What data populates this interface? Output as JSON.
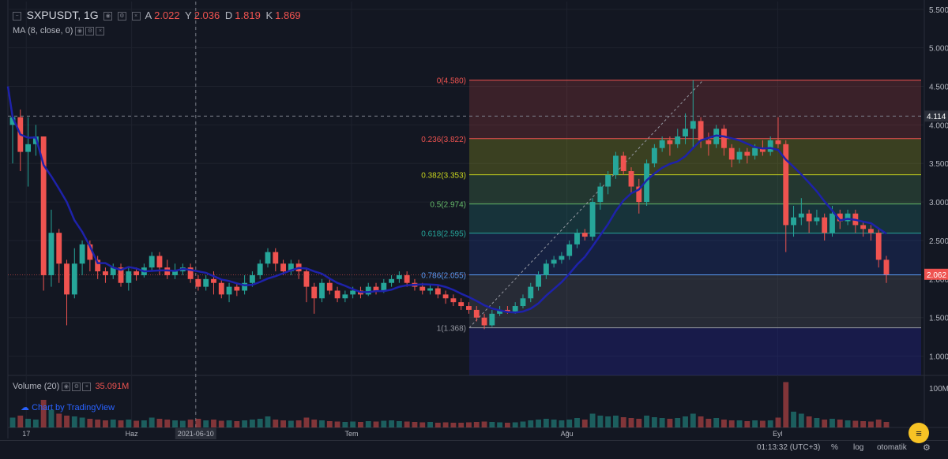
{
  "header": {
    "symbol": "SXPUSDT, 1G",
    "open_label": "A",
    "open_value": "2.022",
    "high_label": "Y",
    "high_value": "2.036",
    "low_label": "D",
    "low_value": "1.819",
    "close_label": "K",
    "close_value": "1.869"
  },
  "indicator": {
    "label": "MA (8, close, 0)"
  },
  "volume": {
    "label": "Volume (20)",
    "value": "35.091M"
  },
  "brand": {
    "text": "Chart by TradingView"
  },
  "footer": {
    "time": "01:13:32 (UTC+3)",
    "percent": "%",
    "log": "log",
    "auto": "otomatik"
  },
  "colors": {
    "up": "#26a69a",
    "down": "#ef5350",
    "ma": "#1e22aa",
    "background": "#131722"
  },
  "chart_data": {
    "type": "candlestick",
    "price_axis": {
      "range": [
        0.75,
        5.6
      ],
      "ticks": [
        "5.500",
        "5.000",
        "4.500",
        "4.000",
        "3.500",
        "3.000",
        "2.500",
        "2.000",
        "1.500",
        "1.000"
      ]
    },
    "time_axis": {
      "labels": [
        "17",
        "Haz",
        "2021-06-10",
        "Tem",
        "Ağu",
        "Eyl"
      ]
    },
    "volume_axis": {
      "ticks": [
        "100M"
      ]
    },
    "price_labels": [
      {
        "value": "4.114",
        "type": "crosshair"
      },
      {
        "value": "2.062",
        "type": "last"
      }
    ],
    "fibonacci": [
      {
        "label": "0(4.580)",
        "level": 4.58,
        "color": "#ef5350"
      },
      {
        "label": "0.236(3.822)",
        "level": 3.822,
        "color": "#ef5350"
      },
      {
        "label": "0.382(3.353)",
        "level": 3.353,
        "color": "#c8d51f"
      },
      {
        "label": "0.5(2.974)",
        "level": 2.974,
        "color": "#66bb6a"
      },
      {
        "label": "0.618(2.595)",
        "level": 2.595,
        "color": "#26a69a"
      },
      {
        "label": "0.786(2.055)",
        "level": 2.055,
        "color": "#5b9cf6"
      },
      {
        "label": "1(1.368)",
        "level": 1.368,
        "color": "#9598a1"
      }
    ],
    "candles": [
      [
        4.0,
        4.1,
        4.15,
        3.5
      ],
      [
        4.1,
        3.65,
        4.2,
        3.4
      ],
      [
        3.65,
        3.75,
        4.1,
        3.2
      ],
      [
        3.75,
        3.85,
        4.0,
        3.6
      ],
      [
        3.85,
        2.05,
        3.85,
        1.85
      ],
      [
        2.05,
        2.6,
        2.9,
        1.9
      ],
      [
        2.6,
        2.2,
        2.65,
        1.95
      ],
      [
        2.2,
        1.8,
        2.25,
        1.4
      ],
      [
        1.8,
        2.2,
        2.4,
        1.75
      ],
      [
        2.2,
        2.45,
        2.5,
        2.05
      ],
      [
        2.45,
        2.25,
        2.5,
        2.1
      ],
      [
        2.25,
        2.1,
        2.3,
        2.0
      ],
      [
        2.1,
        2.05,
        2.15,
        1.95
      ],
      [
        2.05,
        2.15,
        2.2,
        2.0
      ],
      [
        2.15,
        1.95,
        2.2,
        1.9
      ],
      [
        1.95,
        2.1,
        2.15,
        1.85
      ],
      [
        2.1,
        2.05,
        2.15,
        1.98
      ],
      [
        2.05,
        2.15,
        2.2,
        2.02
      ],
      [
        2.15,
        2.3,
        2.35,
        2.1
      ],
      [
        2.3,
        2.15,
        2.35,
        2.05
      ],
      [
        2.15,
        2.05,
        2.25,
        2.0
      ],
      [
        2.05,
        2.1,
        2.2,
        2.0
      ],
      [
        2.1,
        2.15,
        2.2,
        2.05
      ],
      [
        2.15,
        2.0,
        2.2,
        1.95
      ],
      [
        2.0,
        1.9,
        2.05,
        1.85
      ],
      [
        1.9,
        2.0,
        2.05,
        1.85
      ],
      [
        2.0,
        1.95,
        2.1,
        1.8
      ],
      [
        1.95,
        1.8,
        2.0,
        1.75
      ],
      [
        1.8,
        1.9,
        1.95,
        1.7
      ],
      [
        1.9,
        1.85,
        1.95,
        1.78
      ],
      [
        1.85,
        1.95,
        2.05,
        1.8
      ],
      [
        1.95,
        2.05,
        2.1,
        1.9
      ],
      [
        2.05,
        2.2,
        2.25,
        2.0
      ],
      [
        2.2,
        2.35,
        2.4,
        2.15
      ],
      [
        2.35,
        2.2,
        2.4,
        2.1
      ],
      [
        2.2,
        2.1,
        2.25,
        2.05
      ],
      [
        2.1,
        2.2,
        2.25,
        2.05
      ],
      [
        2.2,
        2.1,
        2.25,
        2.0
      ],
      [
        2.1,
        1.9,
        2.15,
        1.7
      ],
      [
        1.9,
        1.75,
        1.95,
        1.55
      ],
      [
        1.75,
        1.95,
        2.0,
        1.7
      ],
      [
        1.95,
        1.85,
        2.0,
        1.8
      ],
      [
        1.85,
        1.75,
        1.9,
        1.7
      ],
      [
        1.75,
        1.8,
        1.85,
        1.7
      ],
      [
        1.8,
        1.85,
        1.9,
        1.75
      ],
      [
        1.85,
        1.8,
        1.9,
        1.75
      ],
      [
        1.8,
        1.9,
        1.95,
        1.78
      ],
      [
        1.9,
        1.85,
        1.95,
        1.8
      ],
      [
        1.85,
        1.95,
        2.0,
        1.82
      ],
      [
        1.95,
        2.0,
        2.05,
        1.9
      ],
      [
        2.0,
        2.05,
        2.1,
        1.95
      ],
      [
        2.05,
        1.95,
        2.1,
        1.9
      ],
      [
        1.95,
        1.9,
        2.0,
        1.85
      ],
      [
        1.9,
        1.85,
        1.95,
        1.8
      ],
      [
        1.85,
        1.88,
        1.92,
        1.8
      ],
      [
        1.88,
        1.8,
        1.92,
        1.75
      ],
      [
        1.8,
        1.75,
        1.85,
        1.68
      ],
      [
        1.75,
        1.7,
        1.8,
        1.65
      ],
      [
        1.7,
        1.65,
        1.75,
        1.6
      ],
      [
        1.65,
        1.6,
        1.7,
        1.55
      ],
      [
        1.6,
        1.5,
        1.65,
        1.45
      ],
      [
        1.5,
        1.4,
        1.55,
        1.35
      ],
      [
        1.4,
        1.55,
        1.6,
        1.38
      ],
      [
        1.55,
        1.6,
        1.65,
        1.52
      ],
      [
        1.6,
        1.58,
        1.65,
        1.55
      ],
      [
        1.58,
        1.65,
        1.7,
        1.55
      ],
      [
        1.65,
        1.75,
        1.8,
        1.62
      ],
      [
        1.75,
        1.9,
        1.95,
        1.7
      ],
      [
        1.9,
        2.05,
        2.1,
        1.85
      ],
      [
        2.05,
        2.2,
        2.25,
        2.0
      ],
      [
        2.2,
        2.25,
        2.3,
        2.15
      ],
      [
        2.25,
        2.3,
        2.35,
        2.2
      ],
      [
        2.3,
        2.45,
        2.5,
        2.25
      ],
      [
        2.45,
        2.6,
        2.65,
        2.4
      ],
      [
        2.6,
        2.55,
        2.65,
        2.5
      ],
      [
        2.55,
        3.0,
        3.05,
        2.5
      ],
      [
        3.0,
        3.2,
        3.25,
        2.9
      ],
      [
        3.2,
        3.35,
        3.4,
        3.1
      ],
      [
        3.35,
        3.6,
        3.65,
        3.3
      ],
      [
        3.6,
        3.4,
        3.65,
        3.35
      ],
      [
        3.4,
        3.2,
        3.45,
        3.1
      ],
      [
        3.2,
        3.0,
        3.3,
        2.85
      ],
      [
        3.0,
        3.5,
        3.55,
        2.95
      ],
      [
        3.5,
        3.7,
        3.75,
        3.45
      ],
      [
        3.7,
        3.8,
        3.85,
        3.65
      ],
      [
        3.8,
        3.75,
        3.85,
        3.6
      ],
      [
        3.75,
        3.85,
        3.95,
        3.7
      ],
      [
        3.85,
        3.95,
        4.15,
        3.75
      ],
      [
        3.95,
        4.05,
        4.58,
        3.7
      ],
      [
        4.05,
        3.8,
        4.1,
        3.7
      ],
      [
        3.8,
        3.75,
        3.9,
        3.6
      ],
      [
        3.75,
        3.95,
        4.0,
        3.7
      ],
      [
        3.95,
        3.7,
        4.0,
        3.6
      ],
      [
        3.7,
        3.55,
        3.75,
        3.45
      ],
      [
        3.55,
        3.65,
        3.7,
        3.5
      ],
      [
        3.65,
        3.6,
        3.7,
        3.5
      ],
      [
        3.6,
        3.7,
        3.75,
        3.55
      ],
      [
        3.7,
        3.65,
        3.8,
        3.6
      ],
      [
        3.65,
        3.8,
        3.85,
        3.6
      ],
      [
        3.8,
        3.75,
        4.1,
        3.7
      ],
      [
        3.75,
        2.7,
        3.8,
        2.35
      ],
      [
        2.7,
        2.8,
        2.95,
        2.55
      ],
      [
        2.8,
        2.85,
        3.05,
        2.7
      ],
      [
        2.85,
        2.75,
        2.9,
        2.6
      ],
      [
        2.75,
        2.8,
        2.9,
        2.7
      ],
      [
        2.8,
        2.6,
        2.85,
        2.5
      ],
      [
        2.6,
        2.85,
        2.95,
        2.55
      ],
      [
        2.85,
        2.75,
        2.9,
        2.65
      ],
      [
        2.75,
        2.85,
        2.9,
        2.7
      ],
      [
        2.85,
        2.7,
        2.9,
        2.6
      ],
      [
        2.7,
        2.65,
        2.75,
        2.55
      ],
      [
        2.65,
        2.6,
        2.7,
        2.5
      ],
      [
        2.6,
        2.25,
        2.65,
        2.15
      ],
      [
        2.25,
        2.06,
        2.3,
        1.95
      ]
    ],
    "volumes": [
      25,
      30,
      22,
      20,
      70,
      45,
      35,
      30,
      28,
      25,
      22,
      20,
      18,
      20,
      18,
      20,
      17,
      18,
      25,
      22,
      20,
      18,
      17,
      20,
      22,
      18,
      20,
      17,
      18,
      16,
      18,
      20,
      22,
      28,
      20,
      18,
      17,
      18,
      25,
      20,
      18,
      16,
      15,
      14,
      15,
      14,
      16,
      15,
      17,
      18,
      16,
      15,
      14,
      13,
      14,
      12,
      13,
      12,
      12,
      13,
      14,
      15,
      14,
      13,
      12,
      13,
      15,
      18,
      20,
      22,
      20,
      18,
      20,
      24,
      20,
      35,
      30,
      28,
      30,
      26,
      24,
      22,
      30,
      26,
      24,
      22,
      24,
      28,
      35,
      28,
      22,
      24,
      20,
      18,
      18,
      16,
      18,
      17,
      18,
      25,
      115,
      40,
      35,
      28,
      24,
      20,
      22,
      20,
      18,
      17,
      16,
      15,
      20,
      14
    ],
    "ma_period": 8
  }
}
